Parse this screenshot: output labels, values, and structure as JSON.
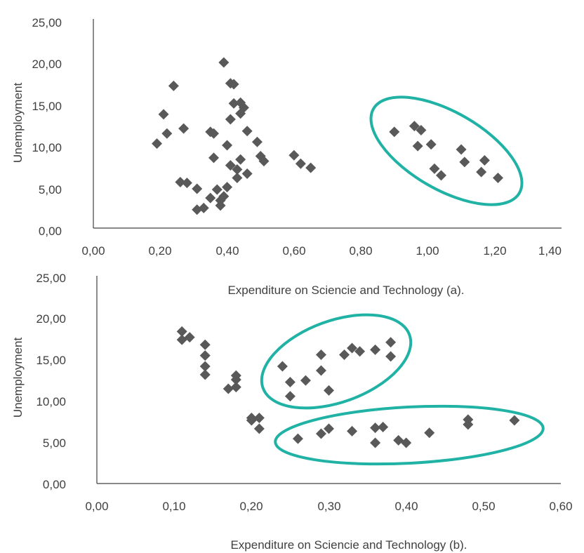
{
  "colors": {
    "marker": "#595959",
    "cluster": "#20B2A4",
    "axis": "#404040"
  },
  "chart_data": [
    {
      "type": "scatter",
      "title": "",
      "xlabel": "Expenditure on Sciencie and Technology (a).",
      "ylabel": "Unemployment",
      "xlim": [
        0,
        1.4
      ],
      "ylim": [
        0,
        25
      ],
      "xticks": [
        "0,00",
        "0,20",
        "0,40",
        "0,60",
        "0,80",
        "1,00",
        "1,20",
        "1,40"
      ],
      "yticks": [
        "0,00",
        "5,00",
        "10,00",
        "15,00",
        "20,00",
        "25,00"
      ],
      "grid": false,
      "points": [
        [
          0.19,
          10.1
        ],
        [
          0.21,
          13.6
        ],
        [
          0.22,
          11.3
        ],
        [
          0.24,
          17.0
        ],
        [
          0.26,
          5.5
        ],
        [
          0.27,
          11.9
        ],
        [
          0.28,
          5.4
        ],
        [
          0.31,
          4.7
        ],
        [
          0.31,
          2.2
        ],
        [
          0.33,
          2.4
        ],
        [
          0.35,
          3.6
        ],
        [
          0.35,
          11.5
        ],
        [
          0.36,
          8.4
        ],
        [
          0.36,
          11.3
        ],
        [
          0.37,
          4.6
        ],
        [
          0.38,
          2.7
        ],
        [
          0.38,
          3.3
        ],
        [
          0.39,
          3.8
        ],
        [
          0.39,
          19.8
        ],
        [
          0.4,
          9.9
        ],
        [
          0.4,
          4.9
        ],
        [
          0.41,
          7.5
        ],
        [
          0.41,
          13.0
        ],
        [
          0.41,
          17.3
        ],
        [
          0.42,
          14.9
        ],
        [
          0.42,
          17.2
        ],
        [
          0.43,
          6.0
        ],
        [
          0.43,
          7.0
        ],
        [
          0.44,
          8.2
        ],
        [
          0.44,
          15.0
        ],
        [
          0.44,
          13.7
        ],
        [
          0.45,
          14.4
        ],
        [
          0.46,
          6.5
        ],
        [
          0.46,
          11.6
        ],
        [
          0.49,
          10.3
        ],
        [
          0.5,
          8.6
        ],
        [
          0.51,
          8.0
        ],
        [
          0.6,
          8.7
        ],
        [
          0.62,
          7.7
        ],
        [
          0.65,
          7.2
        ],
        [
          0.9,
          11.5
        ],
        [
          0.96,
          12.2
        ],
        [
          0.97,
          9.8
        ],
        [
          0.98,
          11.7
        ],
        [
          1.01,
          10.0
        ],
        [
          1.02,
          7.1
        ],
        [
          1.04,
          6.3
        ],
        [
          1.1,
          9.4
        ],
        [
          1.11,
          7.9
        ],
        [
          1.16,
          6.7
        ],
        [
          1.17,
          8.1
        ],
        [
          1.21,
          6.0
        ]
      ]
    },
    {
      "type": "scatter",
      "title": "",
      "xlabel": "Expenditure on Sciencie and Technology (b).",
      "ylabel": "Unemployment",
      "xlim": [
        0,
        0.6
      ],
      "ylim": [
        0,
        25
      ],
      "xticks": [
        "0,00",
        "0,10",
        "0,20",
        "0,30",
        "0,40",
        "0,50",
        "0,60"
      ],
      "yticks": [
        "0,00",
        "5,00",
        "10,00",
        "15,00",
        "20,00",
        "25,00"
      ],
      "grid": false,
      "points": [
        [
          0.11,
          18.3
        ],
        [
          0.11,
          17.3
        ],
        [
          0.12,
          17.6
        ],
        [
          0.14,
          16.7
        ],
        [
          0.14,
          15.4
        ],
        [
          0.14,
          14.1
        ],
        [
          0.14,
          13.1
        ],
        [
          0.17,
          11.4
        ],
        [
          0.18,
          11.6
        ],
        [
          0.18,
          12.5
        ],
        [
          0.18,
          13.0
        ],
        [
          0.2,
          7.9
        ],
        [
          0.2,
          7.6
        ],
        [
          0.21,
          7.9
        ],
        [
          0.21,
          6.6
        ],
        [
          0.24,
          14.1
        ],
        [
          0.25,
          12.2
        ],
        [
          0.25,
          10.5
        ],
        [
          0.27,
          12.4
        ],
        [
          0.29,
          15.5
        ],
        [
          0.29,
          13.6
        ],
        [
          0.3,
          11.2
        ],
        [
          0.32,
          15.5
        ],
        [
          0.33,
          16.3
        ],
        [
          0.34,
          15.9
        ],
        [
          0.36,
          16.1
        ],
        [
          0.38,
          17.0
        ],
        [
          0.38,
          15.3
        ],
        [
          0.26,
          5.4
        ],
        [
          0.29,
          6.0
        ],
        [
          0.3,
          6.6
        ],
        [
          0.33,
          6.3
        ],
        [
          0.36,
          6.7
        ],
        [
          0.36,
          4.9
        ],
        [
          0.37,
          6.8
        ],
        [
          0.39,
          5.2
        ],
        [
          0.4,
          4.9
        ],
        [
          0.43,
          6.1
        ],
        [
          0.48,
          7.7
        ],
        [
          0.48,
          7.1
        ],
        [
          0.54,
          7.6
        ]
      ]
    }
  ]
}
